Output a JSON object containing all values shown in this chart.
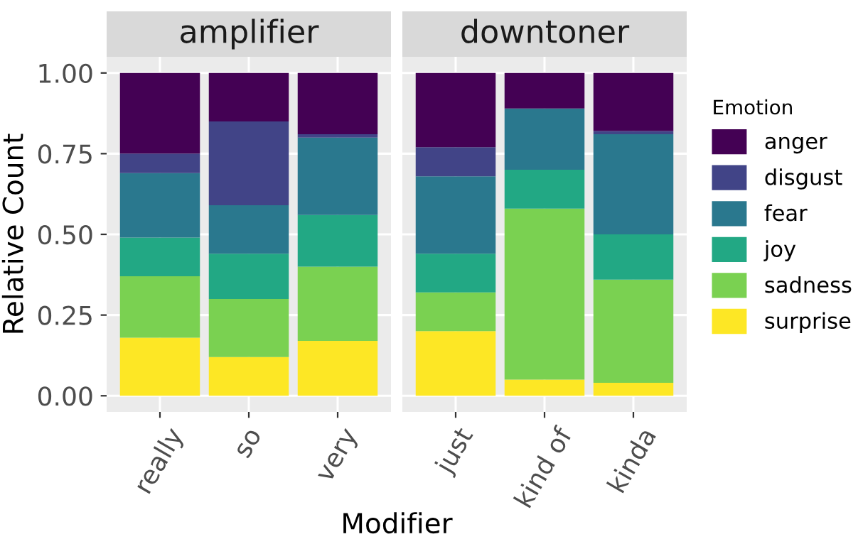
{
  "chart_data": [
    {
      "type": "bar",
      "stacked": true,
      "title": "amplifier",
      "ylabel": "Relative Count",
      "xlabel": "Modifier",
      "categories": [
        "really",
        "so",
        "very"
      ],
      "ylim": [
        -0.05,
        1.05
      ],
      "yticks": [
        {
          "value": 0,
          "label": "0.00"
        },
        {
          "value": 0.25,
          "label": "0.25"
        },
        {
          "value": 0.5,
          "label": "0.50"
        },
        {
          "value": 0.75,
          "label": "0.75"
        },
        {
          "value": 1,
          "label": "1.00"
        }
      ],
      "grid": true,
      "series": [
        {
          "color": "#fde725",
          "values": [
            0.18,
            0.12,
            0.17
          ]
        },
        {
          "color": "#7ad151",
          "values": [
            0.19,
            0.18,
            0.23
          ]
        },
        {
          "color": "#22a884",
          "values": [
            0.12,
            0.14,
            0.16
          ]
        },
        {
          "color": "#2a788e",
          "values": [
            0.2,
            0.15,
            0.24
          ]
        },
        {
          "color": "#414487",
          "values": [
            0.06,
            0.26,
            0.01
          ]
        },
        {
          "color": "#440154",
          "values": [
            0.25,
            0.15,
            0.19
          ]
        }
      ]
    },
    {
      "type": "bar",
      "stacked": true,
      "title": "downtoner",
      "categories": [
        "just",
        "kind of",
        "kinda"
      ],
      "ylim": [
        -0.05,
        1.05
      ],
      "yticks": [
        0,
        0.25,
        0.5,
        0.75,
        1
      ],
      "tick_labels": "x",
      "grid": true,
      "legend": "right",
      "legend_title": "Emotion",
      "series": [
        {
          "name": "surprise",
          "color": "#fde725",
          "values": [
            0.2,
            0.05,
            0.04
          ]
        },
        {
          "name": "sadness",
          "color": "#7ad151",
          "values": [
            0.12,
            0.53,
            0.32
          ]
        },
        {
          "name": "joy",
          "color": "#22a884",
          "values": [
            0.12,
            0.12,
            0.14
          ]
        },
        {
          "name": "fear",
          "color": "#2a788e",
          "values": [
            0.24,
            0.19,
            0.31
          ]
        },
        {
          "name": "disgust",
          "color": "#414487",
          "values": [
            0.09,
            0.0,
            0.01
          ]
        },
        {
          "name": "anger",
          "color": "#440154",
          "values": [
            0.23,
            0.11,
            0.18
          ]
        }
      ]
    }
  ]
}
